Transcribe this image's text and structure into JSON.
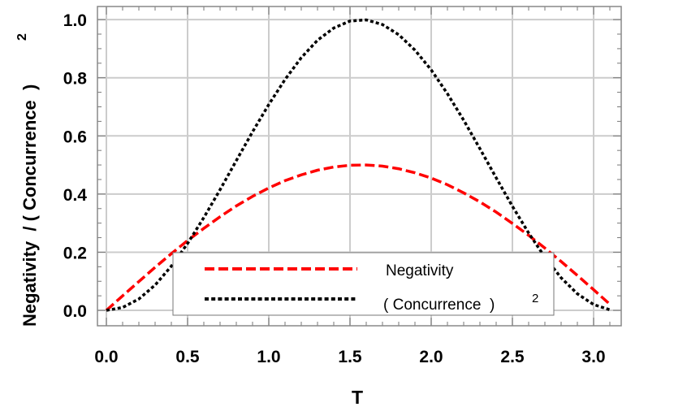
{
  "chart_data": {
    "type": "line",
    "xlabel": "T",
    "ylabel": "Negativity  / ( Concurrence  )",
    "ylabel_superscript": "2",
    "xlim": [
      -0.055,
      3.17
    ],
    "ylim": [
      -0.053,
      1.045
    ],
    "xticks": [
      "0.0",
      "0.5",
      "1.0",
      "1.5",
      "2.0",
      "2.5",
      "3.0"
    ],
    "yticks": [
      "0.0",
      "0.2",
      "0.4",
      "0.6",
      "0.8",
      "1.0"
    ],
    "grid": true,
    "legend_position": "bottom-center",
    "x": [
      0,
      0.1,
      0.2,
      0.3,
      0.4,
      0.5,
      0.6,
      0.7,
      0.8,
      0.9,
      1.0,
      1.1,
      1.2,
      1.3,
      1.4,
      1.5,
      1.6,
      1.7,
      1.8,
      1.9,
      2.0,
      2.1,
      2.2,
      2.3,
      2.4,
      2.5,
      2.6,
      2.7,
      2.8,
      2.9,
      3.0,
      3.1
    ],
    "series": [
      {
        "name": "Negativity",
        "color": "#ff0000",
        "style": "dashed",
        "values": [
          0,
          0.05,
          0.099,
          0.148,
          0.195,
          0.24,
          0.282,
          0.322,
          0.359,
          0.392,
          0.421,
          0.446,
          0.466,
          0.482,
          0.493,
          0.499,
          0.5,
          0.496,
          0.487,
          0.473,
          0.455,
          0.432,
          0.404,
          0.373,
          0.338,
          0.299,
          0.258,
          0.214,
          0.168,
          0.12,
          0.071,
          0.021
        ]
      },
      {
        "name": "( Concurrence  )",
        "name_superscript": "2",
        "color": "#000000",
        "style": "dotted",
        "values": [
          0,
          0.01,
          0.039,
          0.087,
          0.152,
          0.23,
          0.319,
          0.415,
          0.515,
          0.614,
          0.708,
          0.794,
          0.869,
          0.929,
          0.971,
          0.995,
          0.999,
          0.983,
          0.948,
          0.895,
          0.827,
          0.745,
          0.654,
          0.556,
          0.456,
          0.358,
          0.266,
          0.183,
          0.112,
          0.057,
          0.02,
          0.002
        ]
      }
    ]
  }
}
